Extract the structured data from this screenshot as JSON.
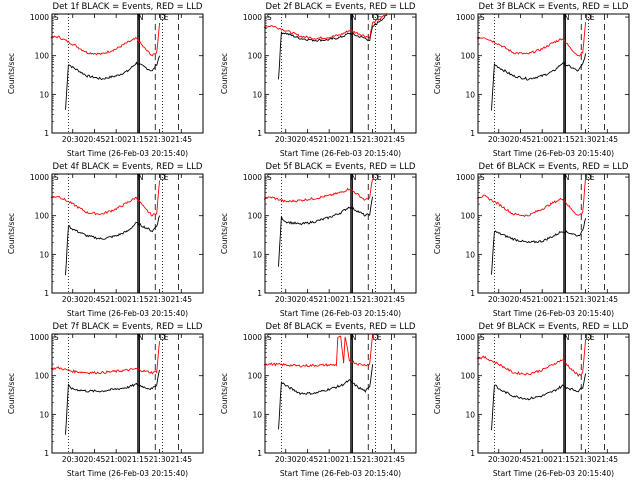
{
  "figure": {
    "ylabel": "Counts/sec",
    "xlabel": "Start Time (26-Feb-03 20:15:40)",
    "x_tick_labels": [
      "20:30",
      "20:45",
      "21:00",
      "21:15",
      "21:30",
      "21:45"
    ],
    "y_tick_labels": [
      "1",
      "10",
      "100",
      "1000"
    ],
    "marker_labels": [
      "S",
      "N",
      "D",
      "E"
    ],
    "colors": {
      "events": "#000000",
      "lld": "#ff0000"
    }
  },
  "chart_data": [
    {
      "type": "line",
      "title": "Det 1f BLACK = Events, RED = LLD",
      "ylim": [
        1,
        1200
      ],
      "y_scale": "log",
      "series": [
        {
          "name": "Events",
          "x": [
            "20:25",
            "20:27",
            "20:30",
            "20:40",
            "20:50",
            "21:00",
            "21:08",
            "21:14",
            "21:20",
            "21:25",
            "21:28",
            "21:30"
          ],
          "y": [
            4,
            60,
            50,
            30,
            25,
            30,
            40,
            65,
            50,
            40,
            60,
            100
          ]
        },
        {
          "name": "LLD",
          "x": [
            "20:15",
            "20:20",
            "20:30",
            "20:40",
            "20:50",
            "21:00",
            "21:08",
            "21:14",
            "21:20",
            "21:25",
            "21:28",
            "21:30"
          ],
          "y": [
            300,
            310,
            200,
            120,
            110,
            150,
            220,
            280,
            150,
            100,
            120,
            700
          ]
        }
      ]
    },
    {
      "type": "line",
      "title": "Det 2f BLACK = Events, RED = LLD",
      "ylim": [
        1,
        1200
      ],
      "y_scale": "log",
      "series": [
        {
          "name": "Events",
          "x": [
            "20:25",
            "20:27",
            "20:30",
            "20:40",
            "20:50",
            "21:00",
            "21:08",
            "21:14",
            "21:20",
            "21:25",
            "21:28",
            "21:30",
            "21:35",
            "21:40"
          ],
          "y": [
            25,
            400,
            380,
            280,
            250,
            260,
            300,
            380,
            320,
            280,
            250,
            550,
            800,
            1100
          ]
        },
        {
          "name": "LLD",
          "x": [
            "20:15",
            "20:20",
            "20:30",
            "20:40",
            "20:50",
            "21:00",
            "21:08",
            "21:14",
            "21:20",
            "21:25",
            "21:28",
            "21:30",
            "21:35",
            "21:40"
          ],
          "y": [
            550,
            600,
            450,
            320,
            280,
            300,
            350,
            450,
            380,
            320,
            300,
            700,
            900,
            1200
          ]
        }
      ]
    },
    {
      "type": "line",
      "title": "Det 3f BLACK = Events, RED = LLD",
      "ylim": [
        1,
        1200
      ],
      "y_scale": "log",
      "series": [
        {
          "name": "Events",
          "x": [
            "20:25",
            "20:27",
            "20:30",
            "20:40",
            "20:50",
            "21:00",
            "21:08",
            "21:14",
            "21:20",
            "21:25",
            "21:28",
            "21:30"
          ],
          "y": [
            4,
            60,
            50,
            30,
            25,
            30,
            40,
            65,
            50,
            40,
            60,
            110
          ]
        },
        {
          "name": "LLD",
          "x": [
            "20:15",
            "20:20",
            "20:30",
            "20:40",
            "20:50",
            "21:00",
            "21:08",
            "21:14",
            "21:20",
            "21:25",
            "21:28",
            "21:30"
          ],
          "y": [
            280,
            300,
            200,
            120,
            110,
            150,
            220,
            280,
            150,
            100,
            120,
            700
          ]
        }
      ]
    },
    {
      "type": "line",
      "title": "Det 4f BLACK = Events, RED = LLD",
      "ylim": [
        1,
        1200
      ],
      "y_scale": "log",
      "series": [
        {
          "name": "Events",
          "x": [
            "20:25",
            "20:27",
            "20:30",
            "20:40",
            "20:50",
            "21:00",
            "21:08",
            "21:14",
            "21:20",
            "21:25",
            "21:28",
            "21:30"
          ],
          "y": [
            3,
            55,
            45,
            30,
            25,
            30,
            40,
            65,
            50,
            40,
            55,
            100
          ]
        },
        {
          "name": "LLD",
          "x": [
            "20:15",
            "20:20",
            "20:30",
            "20:40",
            "20:50",
            "21:00",
            "21:08",
            "21:14",
            "21:20",
            "21:25",
            "21:28",
            "21:30"
          ],
          "y": [
            300,
            320,
            200,
            120,
            110,
            150,
            220,
            300,
            150,
            100,
            120,
            800
          ]
        }
      ]
    },
    {
      "type": "line",
      "title": "Det 5f BLACK = Events, RED = LLD",
      "ylim": [
        1,
        1200
      ],
      "y_scale": "log",
      "series": [
        {
          "name": "Events",
          "x": [
            "20:25",
            "20:27",
            "20:30",
            "20:40",
            "20:50",
            "21:00",
            "21:08",
            "21:14",
            "21:20",
            "21:25",
            "21:28",
            "21:30"
          ],
          "y": [
            5,
            90,
            70,
            60,
            70,
            90,
            120,
            170,
            130,
            100,
            110,
            300
          ]
        },
        {
          "name": "LLD",
          "x": [
            "20:15",
            "20:20",
            "20:30",
            "20:40",
            "20:50",
            "21:00",
            "21:08",
            "21:14",
            "21:20",
            "21:25",
            "21:28",
            "21:30"
          ],
          "y": [
            280,
            300,
            230,
            250,
            280,
            330,
            400,
            500,
            350,
            250,
            300,
            900
          ]
        }
      ]
    },
    {
      "type": "line",
      "title": "Det 6f BLACK = Events, RED = LLD",
      "ylim": [
        1,
        1200
      ],
      "y_scale": "log",
      "series": [
        {
          "name": "Events",
          "x": [
            "20:25",
            "20:27",
            "20:30",
            "20:40",
            "20:50",
            "21:00",
            "21:08",
            "21:14",
            "21:20",
            "21:25",
            "21:28",
            "21:30"
          ],
          "y": [
            3,
            40,
            35,
            25,
            20,
            22,
            30,
            40,
            35,
            30,
            40,
            90
          ]
        },
        {
          "name": "LLD",
          "x": [
            "20:15",
            "20:20",
            "20:30",
            "20:40",
            "20:50",
            "21:00",
            "21:08",
            "21:14",
            "21:20",
            "21:25",
            "21:28",
            "21:30"
          ],
          "y": [
            300,
            320,
            200,
            110,
            100,
            150,
            220,
            280,
            150,
            100,
            120,
            1000
          ]
        }
      ]
    },
    {
      "type": "line",
      "title": "Det 7f BLACK = Events, RED = LLD",
      "ylim": [
        1,
        1200
      ],
      "y_scale": "log",
      "series": [
        {
          "name": "Events",
          "x": [
            "20:25",
            "20:27",
            "20:30",
            "20:40",
            "20:50",
            "21:00",
            "21:08",
            "21:14",
            "21:20",
            "21:25",
            "21:28",
            "21:30"
          ],
          "y": [
            3,
            55,
            45,
            40,
            40,
            45,
            50,
            60,
            50,
            45,
            60,
            150
          ]
        },
        {
          "name": "LLD",
          "x": [
            "20:15",
            "20:20",
            "20:30",
            "20:40",
            "20:50",
            "21:00",
            "21:08",
            "21:14",
            "21:20",
            "21:25",
            "21:28",
            "21:30"
          ],
          "y": [
            150,
            160,
            130,
            120,
            120,
            130,
            140,
            150,
            130,
            120,
            130,
            800
          ]
        }
      ]
    },
    {
      "type": "line",
      "title": "Det 8f BLACK = Events, RED = LLD",
      "ylim": [
        1,
        1200
      ],
      "y_scale": "log",
      "series": [
        {
          "name": "Events",
          "x": [
            "20:25",
            "20:27",
            "20:30",
            "20:40",
            "20:50",
            "21:00",
            "21:08",
            "21:14",
            "21:20",
            "21:25",
            "21:28",
            "21:30"
          ],
          "y": [
            4,
            70,
            55,
            35,
            35,
            45,
            55,
            75,
            50,
            40,
            50,
            200
          ]
        },
        {
          "name": "LLD",
          "x": [
            "20:15",
            "20:20",
            "20:30",
            "20:40",
            "20:50",
            "21:00",
            "21:05",
            "21:06",
            "21:08",
            "21:10",
            "21:11",
            "21:14",
            "21:20",
            "21:25",
            "21:28",
            "21:30"
          ],
          "y": [
            200,
            200,
            190,
            180,
            185,
            190,
            190,
            1000,
            1000,
            200,
            1000,
            250,
            200,
            190,
            200,
            1200
          ]
        }
      ]
    },
    {
      "type": "line",
      "title": "Det 9f BLACK = Events, RED = LLD",
      "ylim": [
        1,
        1200
      ],
      "y_scale": "log",
      "series": [
        {
          "name": "Events",
          "x": [
            "20:25",
            "20:27",
            "20:30",
            "20:40",
            "20:50",
            "21:00",
            "21:08",
            "21:14",
            "21:20",
            "21:25",
            "21:28",
            "21:30"
          ],
          "y": [
            4,
            60,
            45,
            30,
            25,
            30,
            40,
            55,
            45,
            40,
            50,
            120
          ]
        },
        {
          "name": "LLD",
          "x": [
            "20:15",
            "20:20",
            "20:30",
            "20:40",
            "20:50",
            "21:00",
            "21:08",
            "21:14",
            "21:20",
            "21:25",
            "21:28",
            "21:30"
          ],
          "y": [
            280,
            300,
            200,
            120,
            110,
            140,
            200,
            260,
            150,
            100,
            120,
            900
          ]
        }
      ]
    }
  ]
}
